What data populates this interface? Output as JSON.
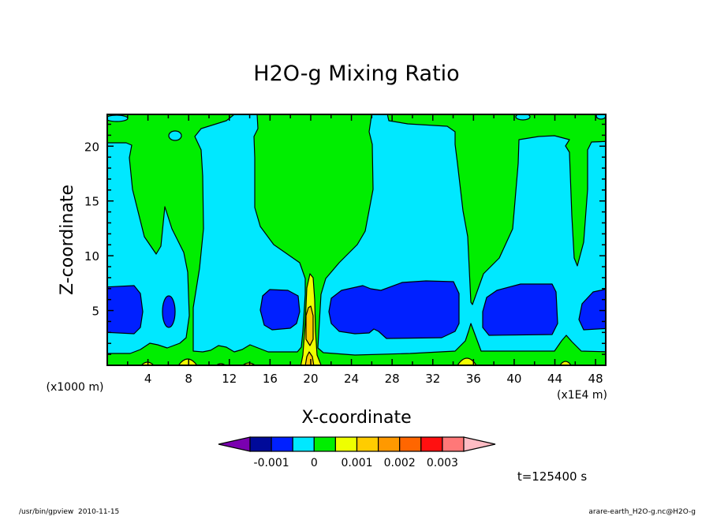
{
  "chart_data": {
    "type": "heatmap",
    "subtype": "filled-contour",
    "title": "H2O-g Mixing Ratio",
    "xlabel": "X-coordinate",
    "ylabel": "Z-coordinate",
    "x_unit_label": "(x1E4 m)",
    "y_unit_label": "(x1000 m)",
    "xlim": [
      0,
      49
    ],
    "ylim": [
      0,
      22.9
    ],
    "xticks": [
      4,
      8,
      12,
      16,
      20,
      24,
      28,
      32,
      36,
      40,
      44,
      48
    ],
    "yticks": [
      5,
      10,
      15,
      20
    ],
    "x_minor_step": 2,
    "y_minor_step": 1,
    "grid": false,
    "colorbar": {
      "levels": [
        -0.0015,
        -0.001,
        -0.0005,
        0,
        0.0005,
        0.001,
        0.0015,
        0.002,
        0.0025,
        0.003,
        0.0035
      ],
      "colors": [
        "#7a00b0",
        "#000a99",
        "#0020ff",
        "#00e8ff",
        "#00ee00",
        "#eeff00",
        "#ffcc00",
        "#ff9900",
        "#ff6600",
        "#ff1010",
        "#ff7878",
        "#ffbcc4"
      ],
      "tick_labels": [
        {
          "value": -0.001,
          "label": "-0.001"
        },
        {
          "value": 0,
          "label": "0"
        },
        {
          "value": 0.001,
          "label": "0.001"
        },
        {
          "value": 0.002,
          "label": "0.002"
        },
        {
          "value": 0.003,
          "label": "0.003"
        }
      ],
      "placement": "bottom"
    },
    "time_label": "t=125400 s"
  },
  "footer": {
    "left": "/usr/bin/gpview  2010-11-15",
    "right": "arare-earth_H2O-g.nc@H2O-g"
  }
}
